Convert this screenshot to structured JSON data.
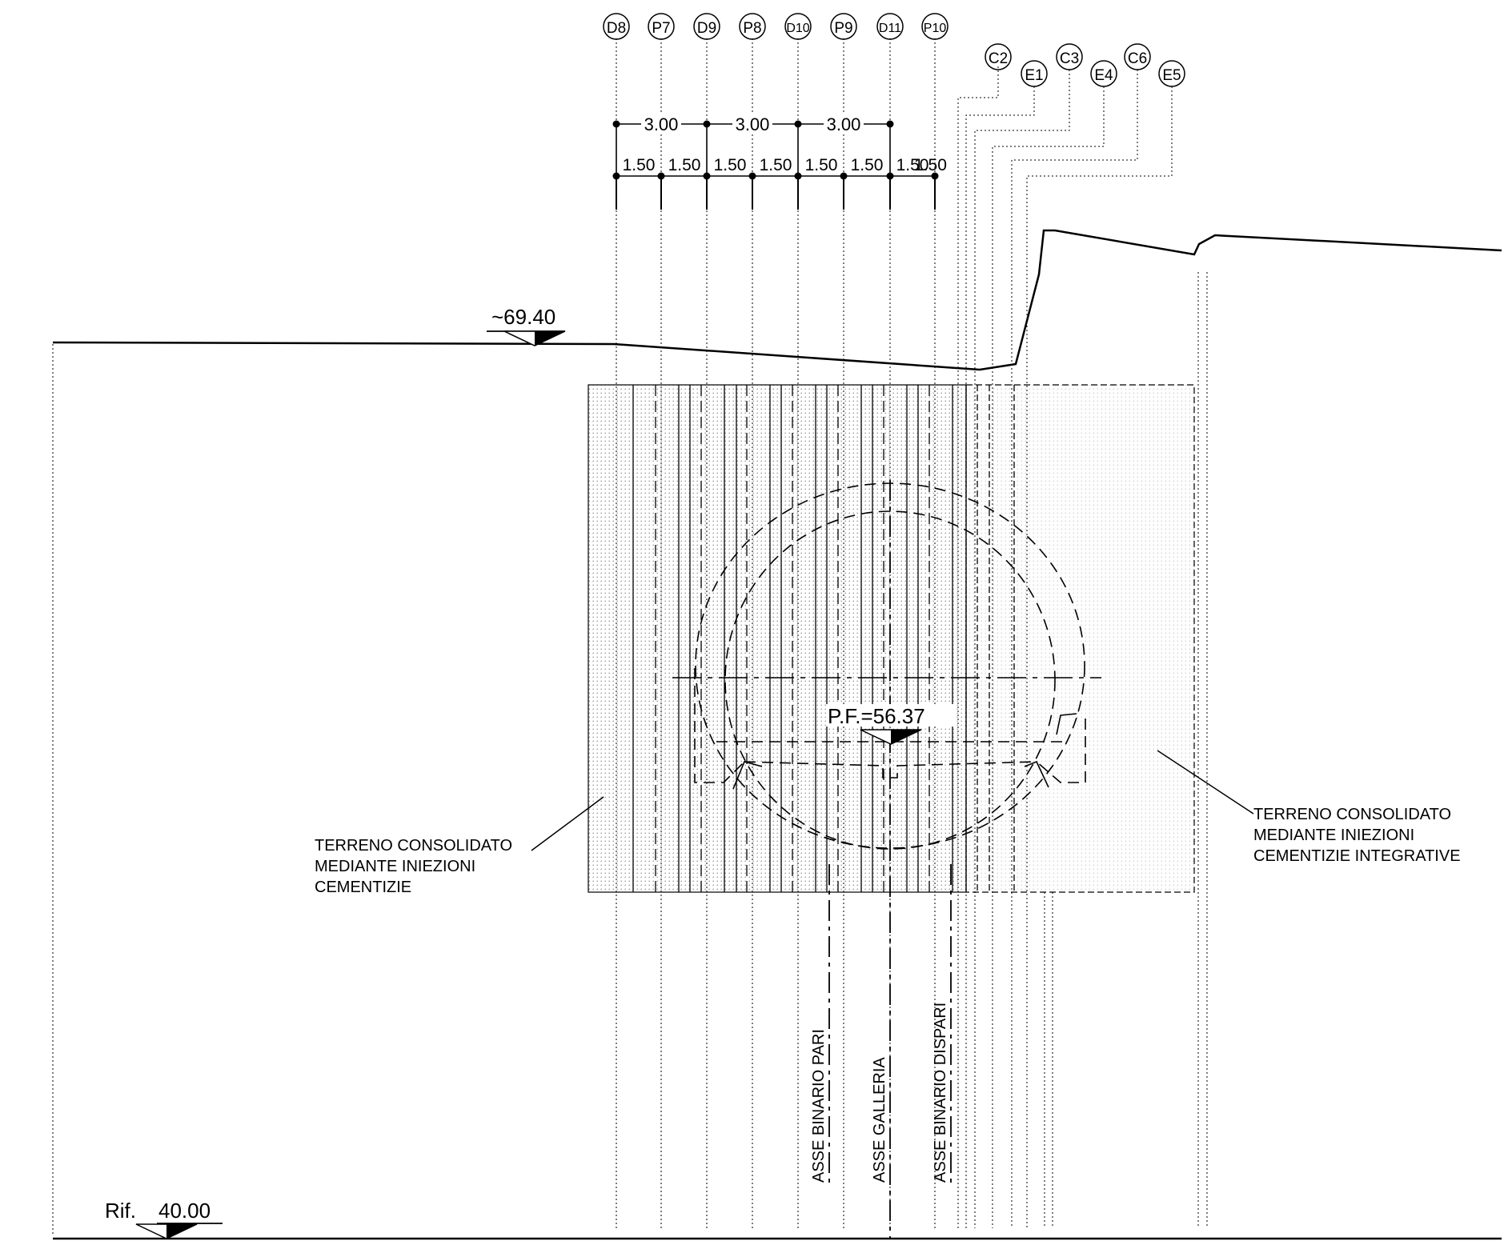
{
  "markers": {
    "top": [
      "D8",
      "P7",
      "D9",
      "P8",
      "D10",
      "P9",
      "D11",
      "P10"
    ],
    "right": [
      "C2",
      "E1",
      "C3",
      "E4",
      "C6",
      "E5"
    ]
  },
  "dimensions": {
    "major": [
      "3.00",
      "3.00",
      "3.00"
    ],
    "minor": [
      "1.50",
      "1.50",
      "1.50",
      "1.50",
      "1.50",
      "1.50",
      "1.50",
      "1.50"
    ]
  },
  "elevations": {
    "ground": "~69.40",
    "rail_level": "P.F.=56.37",
    "reference_prefix": "Rif.",
    "reference_value": "40.00"
  },
  "notes": {
    "left": [
      "TERRENO  CONSOLIDATO",
      "MEDIANTE  INIEZIONI",
      "CEMENTIZIE"
    ],
    "right": [
      "TERRENO  CONSOLIDATO",
      "MEDIANTE  INIEZIONI",
      "CEMENTIZIE  INTEGRATIVE"
    ]
  },
  "axes": {
    "even_track": "ASSE  BINARIO  PARI",
    "tunnel": "ASSE  GALLERIA",
    "odd_track": "ASSE  BINARIO  DISPARI"
  }
}
